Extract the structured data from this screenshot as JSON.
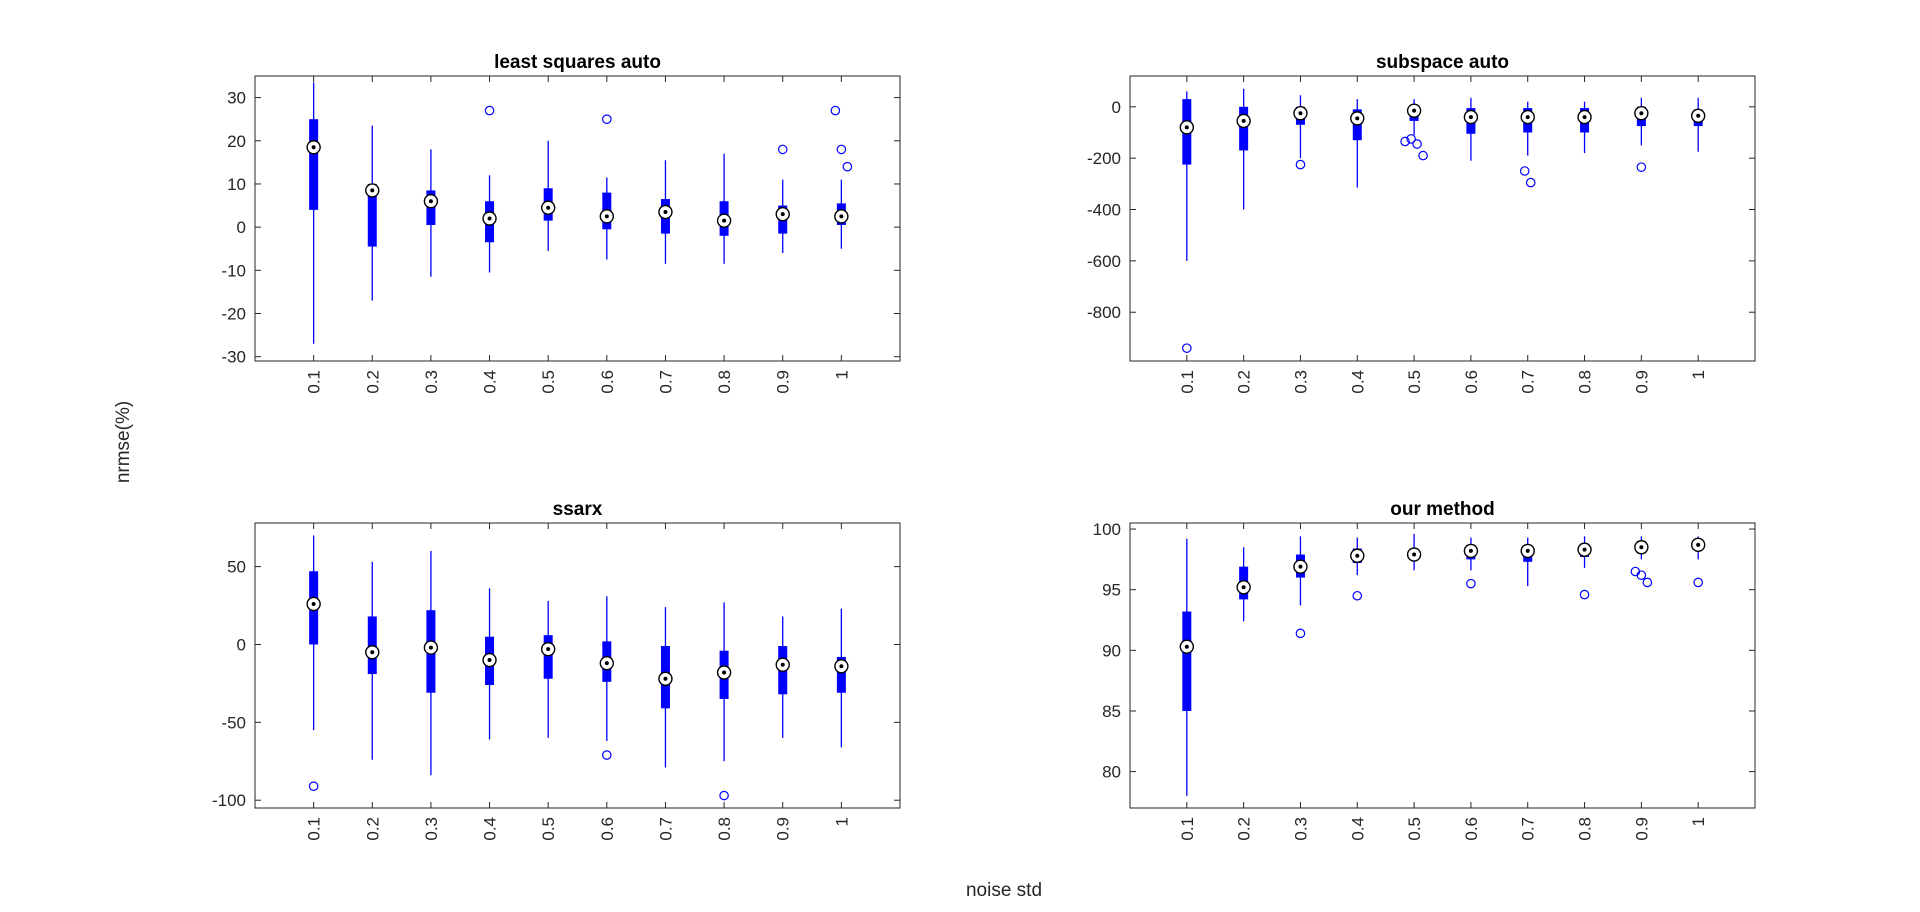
{
  "figure": {
    "xlabel": "noise std",
    "ylabel": "nrmse(%)",
    "box_color": "#0000ff",
    "median_marker_color": "#000000"
  },
  "chart_data": [
    {
      "type": "box",
      "title": "least squares auto",
      "categories": [
        "0.1",
        "0.2",
        "0.3",
        "0.4",
        "0.5",
        "0.6",
        "0.7",
        "0.8",
        "0.9",
        "1"
      ],
      "ylim": [
        -31,
        35
      ],
      "yticks": [
        30,
        20,
        10,
        0,
        -10,
        -20,
        -30
      ],
      "ytick_labels": [
        "30",
        "20",
        "10",
        "0",
        "-10",
        "-20",
        "-30"
      ],
      "boxes": [
        {
          "whisker_low": -27,
          "q1": 4,
          "median": 18.5,
          "q3": 25,
          "whisker_high": 33.5,
          "outliers": []
        },
        {
          "whisker_low": -17,
          "q1": -4.5,
          "median": 8.5,
          "q3": 10,
          "whisker_high": 23.5,
          "outliers": []
        },
        {
          "whisker_low": -11.5,
          "q1": 0.5,
          "median": 6,
          "q3": 8.5,
          "whisker_high": 18,
          "outliers": []
        },
        {
          "whisker_low": -10.5,
          "q1": -3.5,
          "median": 2,
          "q3": 6,
          "whisker_high": 12,
          "outliers": [
            27
          ]
        },
        {
          "whisker_low": -5.5,
          "q1": 1.5,
          "median": 4.5,
          "q3": 9,
          "whisker_high": 20,
          "outliers": []
        },
        {
          "whisker_low": -7.5,
          "q1": -0.5,
          "median": 2.5,
          "q3": 8,
          "whisker_high": 11.5,
          "outliers": [
            25
          ]
        },
        {
          "whisker_low": -8.5,
          "q1": -1.5,
          "median": 3.5,
          "q3": 6.5,
          "whisker_high": 15.5,
          "outliers": []
        },
        {
          "whisker_low": -8.5,
          "q1": -2,
          "median": 1.5,
          "q3": 6,
          "whisker_high": 17,
          "outliers": []
        },
        {
          "whisker_low": -6,
          "q1": -1.5,
          "median": 3,
          "q3": 5,
          "whisker_high": 11,
          "outliers": [
            18
          ]
        },
        {
          "whisker_low": -5,
          "q1": 0.5,
          "median": 2.5,
          "q3": 5.5,
          "whisker_high": 11,
          "outliers": [
            27,
            18,
            14
          ]
        }
      ]
    },
    {
      "type": "box",
      "title": "subspace auto",
      "categories": [
        "0.1",
        "0.2",
        "0.3",
        "0.4",
        "0.5",
        "0.6",
        "0.7",
        "0.8",
        "0.9",
        "1"
      ],
      "ylim": [
        -990,
        120
      ],
      "yticks": [
        0,
        -200,
        -400,
        -600,
        -800
      ],
      "ytick_labels": [
        "0",
        "-200",
        "-400",
        "-600",
        "-800"
      ],
      "boxes": [
        {
          "whisker_low": -600,
          "q1": -225,
          "median": -80,
          "q3": 30,
          "whisker_high": 60,
          "outliers": [
            -940
          ]
        },
        {
          "whisker_low": -400,
          "q1": -170,
          "median": -55,
          "q3": 0,
          "whisker_high": 70,
          "outliers": []
        },
        {
          "whisker_low": -200,
          "q1": -70,
          "median": -25,
          "q3": 0,
          "whisker_high": 45,
          "outliers": [
            -225
          ]
        },
        {
          "whisker_low": -315,
          "q1": -130,
          "median": -45,
          "q3": -10,
          "whisker_high": 30,
          "outliers": []
        },
        {
          "whisker_low": -110,
          "q1": -55,
          "median": -15,
          "q3": 0,
          "whisker_high": 30,
          "outliers": [
            -135,
            -125,
            -145,
            -190
          ]
        },
        {
          "whisker_low": -210,
          "q1": -105,
          "median": -40,
          "q3": -5,
          "whisker_high": 35,
          "outliers": []
        },
        {
          "whisker_low": -190,
          "q1": -100,
          "median": -40,
          "q3": -5,
          "whisker_high": 20,
          "outliers": [
            -250,
            -295
          ]
        },
        {
          "whisker_low": -180,
          "q1": -100,
          "median": -40,
          "q3": -5,
          "whisker_high": 20,
          "outliers": []
        },
        {
          "whisker_low": -150,
          "q1": -75,
          "median": -25,
          "q3": 0,
          "whisker_high": 35,
          "outliers": [
            -235
          ]
        },
        {
          "whisker_low": -175,
          "q1": -75,
          "median": -35,
          "q3": -10,
          "whisker_high": 35,
          "outliers": []
        }
      ]
    },
    {
      "type": "box",
      "title": "ssarx",
      "categories": [
        "0.1",
        "0.2",
        "0.3",
        "0.4",
        "0.5",
        "0.6",
        "0.7",
        "0.8",
        "0.9",
        "1"
      ],
      "ylim": [
        -105,
        78
      ],
      "yticks": [
        50,
        0,
        -50,
        -100
      ],
      "ytick_labels": [
        "50",
        "0",
        "-50",
        "-100"
      ],
      "boxes": [
        {
          "whisker_low": -55,
          "q1": 0,
          "median": 26,
          "q3": 47,
          "whisker_high": 70,
          "outliers": [
            -91
          ]
        },
        {
          "whisker_low": -74,
          "q1": -19,
          "median": -5,
          "q3": 18,
          "whisker_high": 53,
          "outliers": []
        },
        {
          "whisker_low": -84,
          "q1": -31,
          "median": -2,
          "q3": 22,
          "whisker_high": 60,
          "outliers": []
        },
        {
          "whisker_low": -61,
          "q1": -26,
          "median": -10,
          "q3": 5,
          "whisker_high": 36,
          "outliers": []
        },
        {
          "whisker_low": -60,
          "q1": -22,
          "median": -3,
          "q3": 6,
          "whisker_high": 28,
          "outliers": []
        },
        {
          "whisker_low": -62,
          "q1": -24,
          "median": -12,
          "q3": 2,
          "whisker_high": 31,
          "outliers": [
            -71
          ]
        },
        {
          "whisker_low": -79,
          "q1": -41,
          "median": -22,
          "q3": -1,
          "whisker_high": 24,
          "outliers": []
        },
        {
          "whisker_low": -75,
          "q1": -35,
          "median": -18,
          "q3": -4,
          "whisker_high": 27,
          "outliers": [
            -97
          ]
        },
        {
          "whisker_low": -60,
          "q1": -32,
          "median": -13,
          "q3": -1,
          "whisker_high": 18,
          "outliers": []
        },
        {
          "whisker_low": -66,
          "q1": -31,
          "median": -14,
          "q3": -8,
          "whisker_high": 23,
          "outliers": []
        }
      ]
    },
    {
      "type": "box",
      "title": "our method",
      "categories": [
        "0.1",
        "0.2",
        "0.3",
        "0.4",
        "0.5",
        "0.6",
        "0.7",
        "0.8",
        "0.9",
        "1"
      ],
      "ylim": [
        77,
        100.5
      ],
      "yticks": [
        100,
        95,
        90,
        85,
        80
      ],
      "ytick_labels": [
        "100",
        "95",
        "90",
        "85",
        "80"
      ],
      "boxes": [
        {
          "whisker_low": 78,
          "q1": 85,
          "median": 90.3,
          "q3": 93.2,
          "whisker_high": 99.2,
          "outliers": []
        },
        {
          "whisker_low": 92.4,
          "q1": 94.2,
          "median": 95.2,
          "q3": 96.9,
          "whisker_high": 98.5,
          "outliers": []
        },
        {
          "whisker_low": 93.7,
          "q1": 96.0,
          "median": 96.9,
          "q3": 97.9,
          "whisker_high": 99.4,
          "outliers": [
            91.4
          ]
        },
        {
          "whisker_low": 96.2,
          "q1": 97.2,
          "median": 97.8,
          "q3": 98.4,
          "whisker_high": 99.3,
          "outliers": [
            94.5
          ]
        },
        {
          "whisker_low": 96.6,
          "q1": 97.6,
          "median": 97.9,
          "q3": 98.2,
          "whisker_high": 99.6,
          "outliers": []
        },
        {
          "whisker_low": 96.6,
          "q1": 97.5,
          "median": 98.2,
          "q3": 98.7,
          "whisker_high": 99.3,
          "outliers": [
            95.5
          ]
        },
        {
          "whisker_low": 95.3,
          "q1": 97.3,
          "median": 98.2,
          "q3": 98.6,
          "whisker_high": 99.3,
          "outliers": []
        },
        {
          "whisker_low": 96.8,
          "q1": 97.7,
          "median": 98.3,
          "q3": 98.8,
          "whisker_high": 99.4,
          "outliers": [
            94.6
          ]
        },
        {
          "whisker_low": 97.5,
          "q1": 98.0,
          "median": 98.5,
          "q3": 99.0,
          "whisker_high": 99.4,
          "outliers": [
            96.5,
            96.2,
            95.6
          ]
        },
        {
          "whisker_low": 97.5,
          "q1": 98.3,
          "median": 98.7,
          "q3": 99.0,
          "whisker_high": 99.4,
          "outliers": [
            95.6
          ]
        }
      ]
    }
  ]
}
